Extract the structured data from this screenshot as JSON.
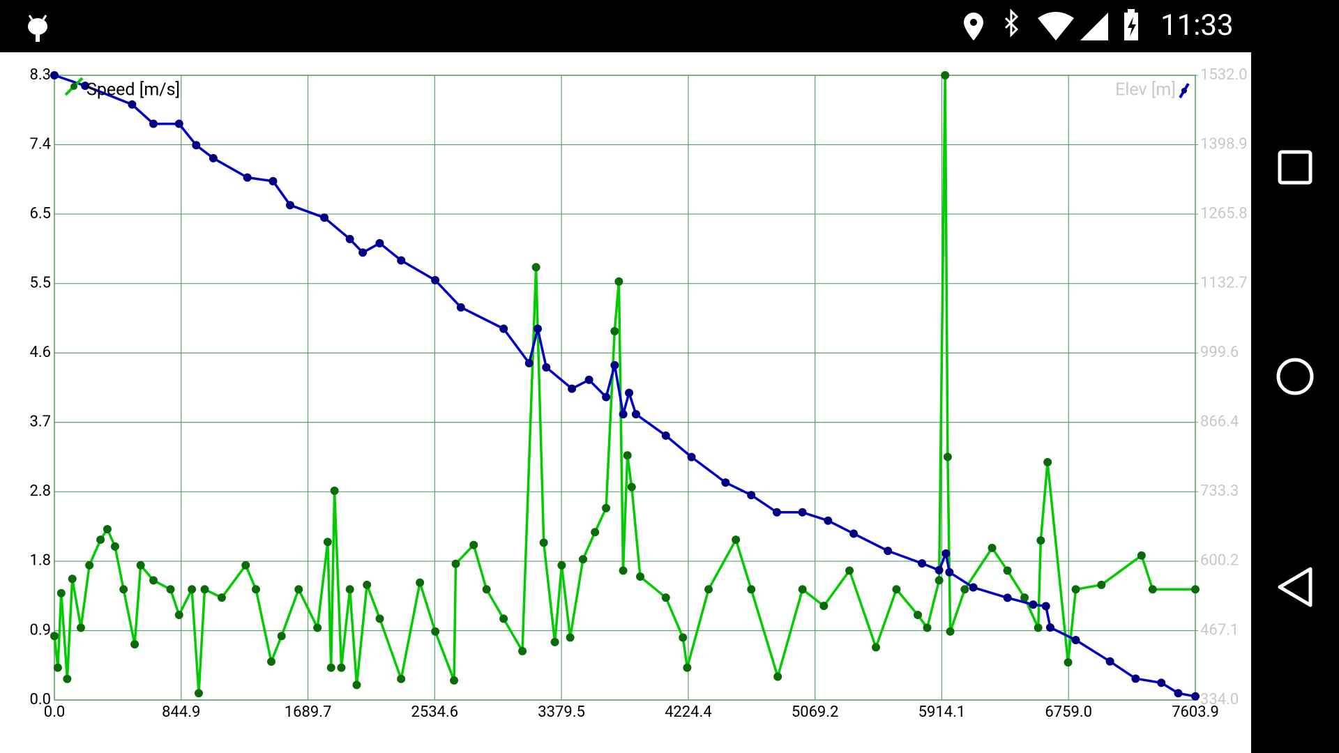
{
  "status_bar": {
    "time": "11:33"
  },
  "chart_data": {
    "type": "line",
    "xlim": [
      0,
      7603.85
    ],
    "xticks": [
      {
        "value": 0,
        "label": "0.0"
      },
      {
        "value": 844.87,
        "label": "844.9"
      },
      {
        "value": 1689.74,
        "label": "1689.7"
      },
      {
        "value": 2534.62,
        "label": "2534.6"
      },
      {
        "value": 3379.49,
        "label": "3379.5"
      },
      {
        "value": 4224.36,
        "label": "4224.4"
      },
      {
        "value": 5069.23,
        "label": "5069.2"
      },
      {
        "value": 5914.1,
        "label": "5914.1"
      },
      {
        "value": 6758.98,
        "label": "6759.0"
      },
      {
        "value": 7603.85,
        "label": "7603.9"
      }
    ],
    "ylim": [
      0,
      8.3
    ],
    "yticks": [
      {
        "value": 0,
        "label": "0.0"
      },
      {
        "value": 0.922,
        "label": "0.9"
      },
      {
        "value": 1.844,
        "label": "1.8"
      },
      {
        "value": 2.767,
        "label": "2.8"
      },
      {
        "value": 3.689,
        "label": "3.7"
      },
      {
        "value": 4.611,
        "label": "4.6"
      },
      {
        "value": 5.533,
        "label": "5.5"
      },
      {
        "value": 6.456,
        "label": "6.5"
      },
      {
        "value": 7.378,
        "label": "7.4"
      },
      8.3
    ],
    "y2lim": [
      334,
      1532
    ],
    "y2ticks": [
      {
        "value": 334,
        "label": "334.0"
      },
      {
        "value": 467.11,
        "label": "467.1"
      },
      {
        "value": 600.22,
        "label": "600.2"
      },
      {
        "value": 733.33,
        "label": "733.3"
      },
      {
        "value": 866.44,
        "label": "866.4"
      },
      {
        "value": 999.56,
        "label": "999.6"
      },
      {
        "value": 1132.67,
        "label": "1132.7"
      },
      {
        "value": 1265.78,
        "label": "1265.8"
      },
      {
        "value": 1398.89,
        "label": "1398.9"
      },
      {
        "value": 1532,
        "label": "1532.0"
      }
    ],
    "grid": true,
    "series": [
      {
        "name": "Speed [m/s]",
        "color": "#00cc00",
        "marker_color": "#0b6b0b",
        "x": [
          0,
          22.8,
          45.5,
          85.4,
          119.5,
          176.4,
          233.3,
          307.3,
          352.9,
          404.1,
          461,
          535,
          574.8,
          660.2,
          774,
          830.9,
          916.3,
          961.9,
          1001.7,
          1115.5,
          1274.9,
          1343.2,
          1445.6,
          1513.9,
          1627.8,
          1753,
          1821.3,
          1844,
          1866.8,
          1912.4,
          1969.3,
          2014.8,
          2083.1,
          2168.5,
          2310.8,
          2436,
          2538.4,
          2663.6,
          2675,
          2794.5,
          2879.9,
          2993.7,
          3118.9,
          3210,
          3261.2,
          3335.2,
          3380.7,
          3437.6,
          3523,
          3602.7,
          3676.7,
          3733.6,
          3762,
          3790.5,
          3819,
          3847.4,
          3904.3,
          4075.1,
          4188.9,
          4217.4,
          4359.7,
          4541.8,
          4644.3,
          4820.7,
          4985.7,
          5128,
          5298.8,
          5475.2,
          5611.8,
          5754.1,
          5816.7,
          5896.4,
          5936.2,
          5953.3,
          5970.4,
          6067.1,
          6249.3,
          6351.7,
          6465.5,
          6556.6,
          6573.6,
          6619.2,
          6755.8,
          6807,
          6977.8,
          7245.3,
          7319.3,
          7603.8
        ],
        "values": [
          0.85,
          0.43,
          1.42,
          0.28,
          1.61,
          0.96,
          1.79,
          2.13,
          2.27,
          2.04,
          1.47,
          0.74,
          1.79,
          1.59,
          1.47,
          1.13,
          1.47,
          0.09,
          1.47,
          1.36,
          1.79,
          1.47,
          0.51,
          0.85,
          1.47,
          0.96,
          2.1,
          0.43,
          2.78,
          0.43,
          1.47,
          0.2,
          1.53,
          1.08,
          0.28,
          1.56,
          0.91,
          0.26,
          1.81,
          2.06,
          1.47,
          1.08,
          0.65,
          5.75,
          2.09,
          0.77,
          1.79,
          0.83,
          1.87,
          2.23,
          2.55,
          4.9,
          5.56,
          1.72,
          3.25,
          2.83,
          1.64,
          1.36,
          0.83,
          0.43,
          1.47,
          2.13,
          1.47,
          0.31,
          1.47,
          1.25,
          1.72,
          0.7,
          1.47,
          1.13,
          0.96,
          1.59,
          8.3,
          3.23,
          0.91,
          1.47,
          2.02,
          1.72,
          1.36,
          0.96,
          2.12,
          3.16,
          0.5,
          1.47,
          1.53,
          1.92,
          1.47,
          1.47
        ]
      },
      {
        "name": "Elev [m]",
        "color": "#0000cc",
        "marker_color": "#000080",
        "axis": "y2",
        "x": [
          0,
          205,
          518,
          660,
          831,
          945,
          1059,
          1286,
          1457,
          1571,
          1799,
          1969,
          2055,
          2168,
          2311,
          2538,
          2709,
          2994,
          3164,
          3221,
          3278,
          3449,
          3563,
          3677,
          3734,
          3791,
          3830,
          3876,
          4075,
          4246,
          4473,
          4644,
          4815,
          4985,
          5156,
          5327,
          5555,
          5782,
          5896,
          5942,
          5965,
          6124,
          6352,
          6523,
          6608,
          6637,
          6807,
          7035,
          7206,
          7377,
          7490,
          7604
        ],
        "values": [
          1532,
          1512,
          1476,
          1439,
          1439,
          1398,
          1373,
          1336,
          1329,
          1283,
          1259,
          1218,
          1192,
          1210,
          1177,
          1139,
          1087,
          1046,
          980,
          1046,
          972,
          931,
          948,
          915,
          976,
          882,
          923,
          882,
          841,
          800,
          751,
          727,
          694,
          694,
          678,
          653,
          620,
          596,
          583,
          615,
          579,
          550,
          530,
          517,
          514,
          473,
          449,
          408,
          375,
          367,
          347,
          341
        ]
      }
    ]
  }
}
